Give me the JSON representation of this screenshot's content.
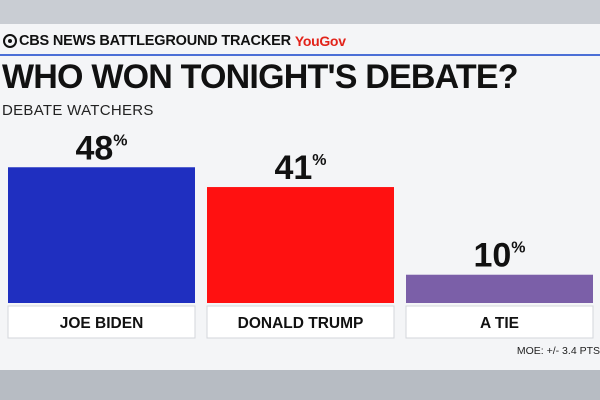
{
  "brand": {
    "network": "CBS NEWS BATTLEGROUND TRACKER",
    "partner": "YouGov"
  },
  "colors": {
    "biden": "#1f2fc0",
    "trump": "#ff1111",
    "tie": "#7b5fa8",
    "rule": "#4b6fd6",
    "partner": "#e2231a"
  },
  "chart_data": {
    "type": "bar",
    "title": "WHO WON TONIGHT'S DEBATE?",
    "subtitle": "DEBATE WATCHERS",
    "categories": [
      "JOE BIDEN",
      "DONALD TRUMP",
      "A TIE"
    ],
    "values": [
      48,
      41,
      10
    ],
    "value_suffix": "%",
    "ylim": [
      0,
      60
    ],
    "grid": false,
    "legend": "none"
  },
  "footer": {
    "moe": "MOE: +/- 3.4 PTS"
  }
}
